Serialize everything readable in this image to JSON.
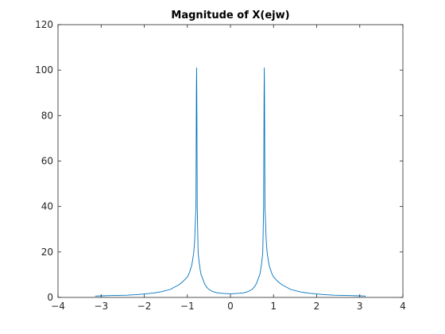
{
  "chart_data": {
    "type": "line",
    "title": "Magnitude of X(ejw)",
    "xlabel": "",
    "ylabel": "",
    "xlim": [
      -4,
      4
    ],
    "ylim": [
      0,
      120
    ],
    "xticks": [
      -4,
      -3,
      -2,
      -1,
      0,
      1,
      2,
      3,
      4
    ],
    "xtick_labels": [
      "−4",
      "−3",
      "−2",
      "−1",
      "0",
      "1",
      "2",
      "3",
      "4"
    ],
    "yticks": [
      0,
      20,
      40,
      60,
      80,
      100,
      120
    ],
    "ytick_labels": [
      "0",
      "20",
      "40",
      "60",
      "80",
      "100",
      "120"
    ],
    "grid": false,
    "series": [
      {
        "color": "#0072BD",
        "x": [
          -3.14,
          -3.0,
          -2.8,
          -2.6,
          -2.4,
          -2.2,
          -2.0,
          -1.8,
          -1.6,
          -1.4,
          -1.2,
          -1.1,
          -1.0,
          -0.95,
          -0.9,
          -0.88,
          -0.85,
          -0.83,
          -0.8,
          -0.79,
          -0.785,
          -0.78,
          -0.77,
          -0.75,
          -0.73,
          -0.7,
          -0.68,
          -0.65,
          -0.6,
          -0.55,
          -0.5,
          -0.4,
          -0.3,
          -0.2,
          -0.1,
          0.0,
          0.1,
          0.2,
          0.3,
          0.4,
          0.5,
          0.55,
          0.6,
          0.65,
          0.68,
          0.7,
          0.73,
          0.75,
          0.77,
          0.78,
          0.785,
          0.79,
          0.8,
          0.83,
          0.85,
          0.88,
          0.9,
          0.95,
          1.0,
          1.1,
          1.2,
          1.4,
          1.6,
          1.8,
          2.0,
          2.2,
          2.4,
          2.6,
          2.8,
          3.0,
          3.14
        ],
        "y": [
          0.6,
          0.7,
          0.8,
          0.9,
          1.0,
          1.2,
          1.5,
          1.9,
          2.5,
          3.5,
          5.5,
          7.0,
          9.0,
          11.0,
          14.0,
          16.0,
          20.0,
          25.0,
          40.0,
          89.0,
          101.0,
          89.0,
          40.0,
          20.0,
          16.0,
          12.0,
          10.0,
          8.5,
          6.0,
          4.5,
          3.5,
          2.5,
          2.0,
          1.8,
          1.7,
          1.6,
          1.7,
          1.8,
          2.0,
          2.5,
          3.5,
          4.5,
          6.0,
          8.5,
          10.0,
          12.0,
          16.0,
          20.0,
          40.0,
          89.0,
          101.0,
          89.0,
          40.0,
          25.0,
          20.0,
          16.0,
          14.0,
          11.0,
          9.0,
          7.0,
          5.5,
          3.5,
          2.5,
          1.9,
          1.5,
          1.2,
          1.0,
          0.9,
          0.8,
          0.7,
          0.6
        ]
      }
    ]
  }
}
